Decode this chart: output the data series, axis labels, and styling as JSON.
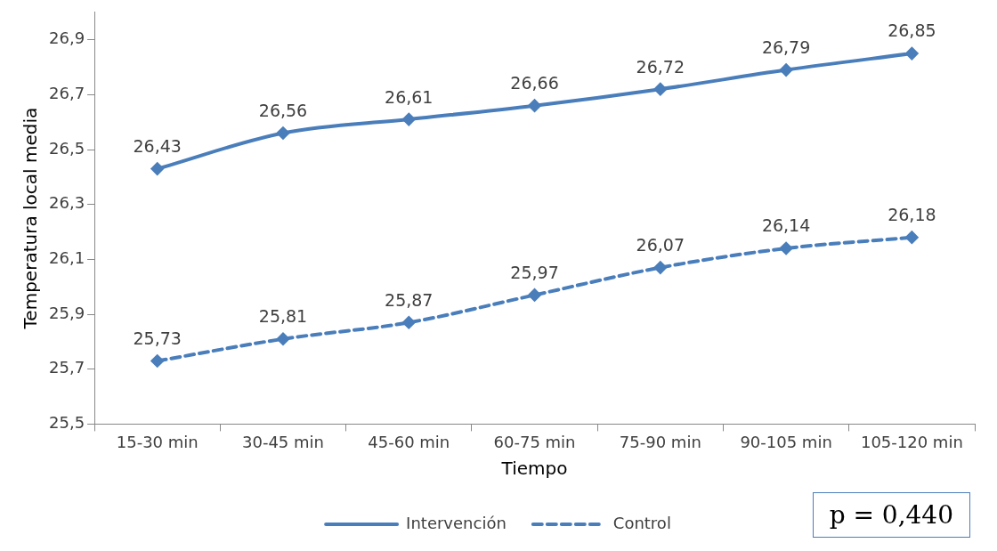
{
  "chart_data": {
    "type": "line",
    "xlabel": "Tiempo",
    "ylabel": "Temperatura local media",
    "categories": [
      "15-30 min",
      "30-45 min",
      "45-60 min",
      "60-75 min",
      "75-90 min",
      "90-105 min",
      "105-120 min"
    ],
    "series": [
      {
        "name": "Intervención",
        "color": "#4a7ebb",
        "line_style": "solid",
        "values": [
          26.43,
          26.56,
          26.61,
          26.66,
          26.72,
          26.79,
          26.85
        ],
        "value_labels": [
          "26,43",
          "26,56",
          "26,61",
          "26,66",
          "26,72",
          "26,79",
          "26,85"
        ]
      },
      {
        "name": "Control",
        "color": "#4a7ebb",
        "line_style": "dashed",
        "values": [
          25.73,
          25.81,
          25.87,
          25.97,
          26.07,
          26.14,
          26.18
        ],
        "value_labels": [
          "25,73",
          "25,81",
          "25,87",
          "25,97",
          "26,07",
          "26,14",
          "26,18"
        ]
      }
    ],
    "ylim": [
      25.5,
      27.0
    ],
    "yticks": [
      {
        "value": 25.5,
        "label": "25,5"
      },
      {
        "value": 25.7,
        "label": "25,7"
      },
      {
        "value": 25.9,
        "label": "25,9"
      },
      {
        "value": 26.1,
        "label": "26,1"
      },
      {
        "value": 26.3,
        "label": "26,3"
      },
      {
        "value": 26.5,
        "label": "26,5"
      },
      {
        "value": 26.7,
        "label": "26,7"
      },
      {
        "value": 26.9,
        "label": "26,9"
      }
    ],
    "grid": false,
    "legend": "bottom",
    "marker": "diamond",
    "annotations": [
      "p = 0,440"
    ]
  }
}
